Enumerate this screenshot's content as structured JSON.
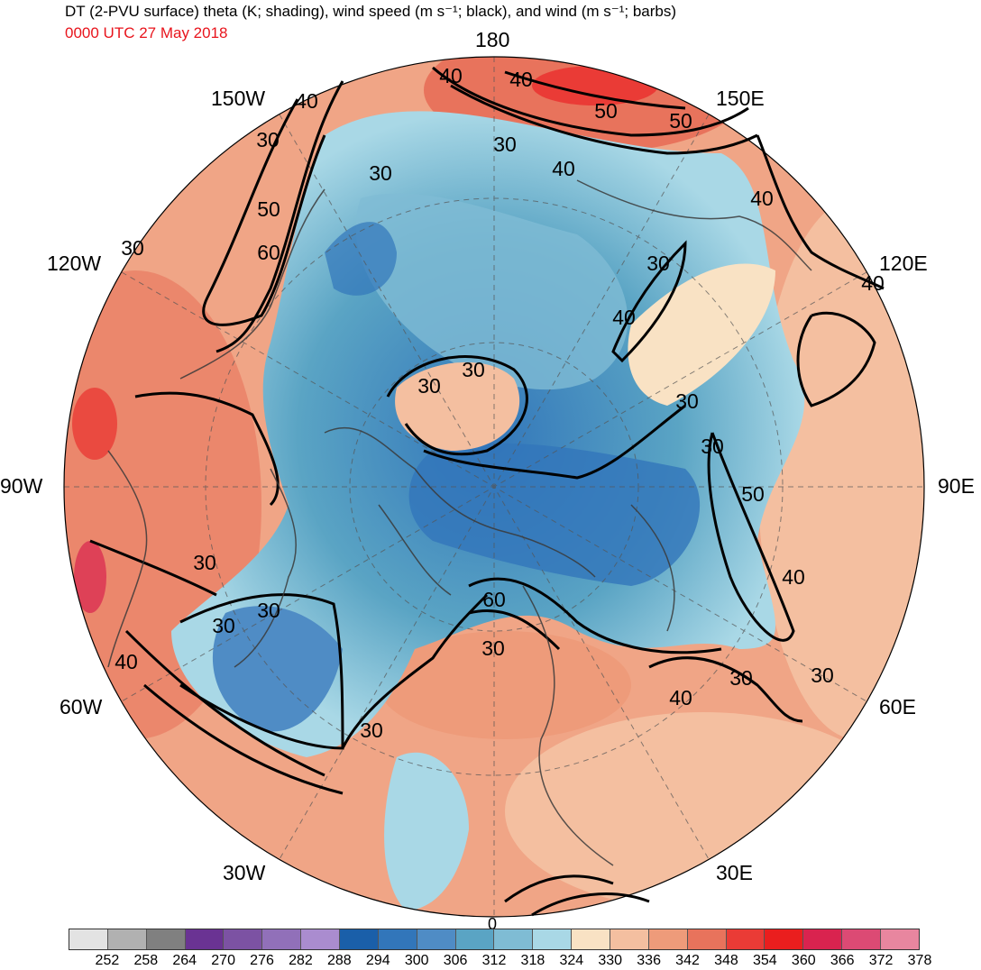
{
  "header": {
    "title": "DT (2-PVU surface) theta (K; shading), wind speed (m s⁻¹; black), and wind (m s⁻¹; barbs)",
    "valid_time": "0000 UTC 27 May 2018"
  },
  "longitude_labels": {
    "top": "180",
    "top_left": "150W",
    "top_right": "150E",
    "upper_left": "120W",
    "upper_right": "120E",
    "left": "90W",
    "right": "90E",
    "lower_left": "60W",
    "lower_right": "60E",
    "bottom_left": "30W",
    "bottom_right": "30E",
    "bottom": "0"
  },
  "isotach_labels": [
    {
      "text": "40"
    },
    {
      "text": "40"
    },
    {
      "text": "50"
    },
    {
      "text": "50"
    },
    {
      "text": "30"
    },
    {
      "text": "40"
    },
    {
      "text": "40"
    },
    {
      "text": "30"
    },
    {
      "text": "30"
    },
    {
      "text": "50"
    },
    {
      "text": "60"
    },
    {
      "text": "30"
    },
    {
      "text": "40"
    },
    {
      "text": "40"
    },
    {
      "text": "30"
    },
    {
      "text": "30"
    },
    {
      "text": "30"
    },
    {
      "text": "30"
    },
    {
      "text": "50"
    },
    {
      "text": "40"
    },
    {
      "text": "30"
    },
    {
      "text": "30"
    },
    {
      "text": "60"
    },
    {
      "text": "30"
    },
    {
      "text": "40"
    },
    {
      "text": "30"
    },
    {
      "text": "40"
    },
    {
      "text": "30"
    },
    {
      "text": "30"
    },
    {
      "text": "40"
    },
    {
      "text": "30"
    },
    {
      "text": "30"
    }
  ],
  "colorbar": {
    "colors": [
      "#e3e3e3",
      "#b1b1b1",
      "#808080",
      "#6a3393",
      "#7c52a3",
      "#9170b9",
      "#aa8ccf",
      "#1a5fa9",
      "#3276ba",
      "#4f8cc5",
      "#5aa4c4",
      "#7fbcd4",
      "#a9d8e6",
      "#f9e2c4",
      "#f4bfa0",
      "#ee9b7a",
      "#e8735c",
      "#ea3b36",
      "#ea1e1e",
      "#d9234f",
      "#dc4a74",
      "#e8869f"
    ],
    "labels": [
      "252",
      "258",
      "264",
      "270",
      "276",
      "282",
      "288",
      "294",
      "300",
      "306",
      "312",
      "318",
      "324",
      "330",
      "336",
      "342",
      "348",
      "354",
      "360",
      "366",
      "372",
      "378"
    ]
  }
}
